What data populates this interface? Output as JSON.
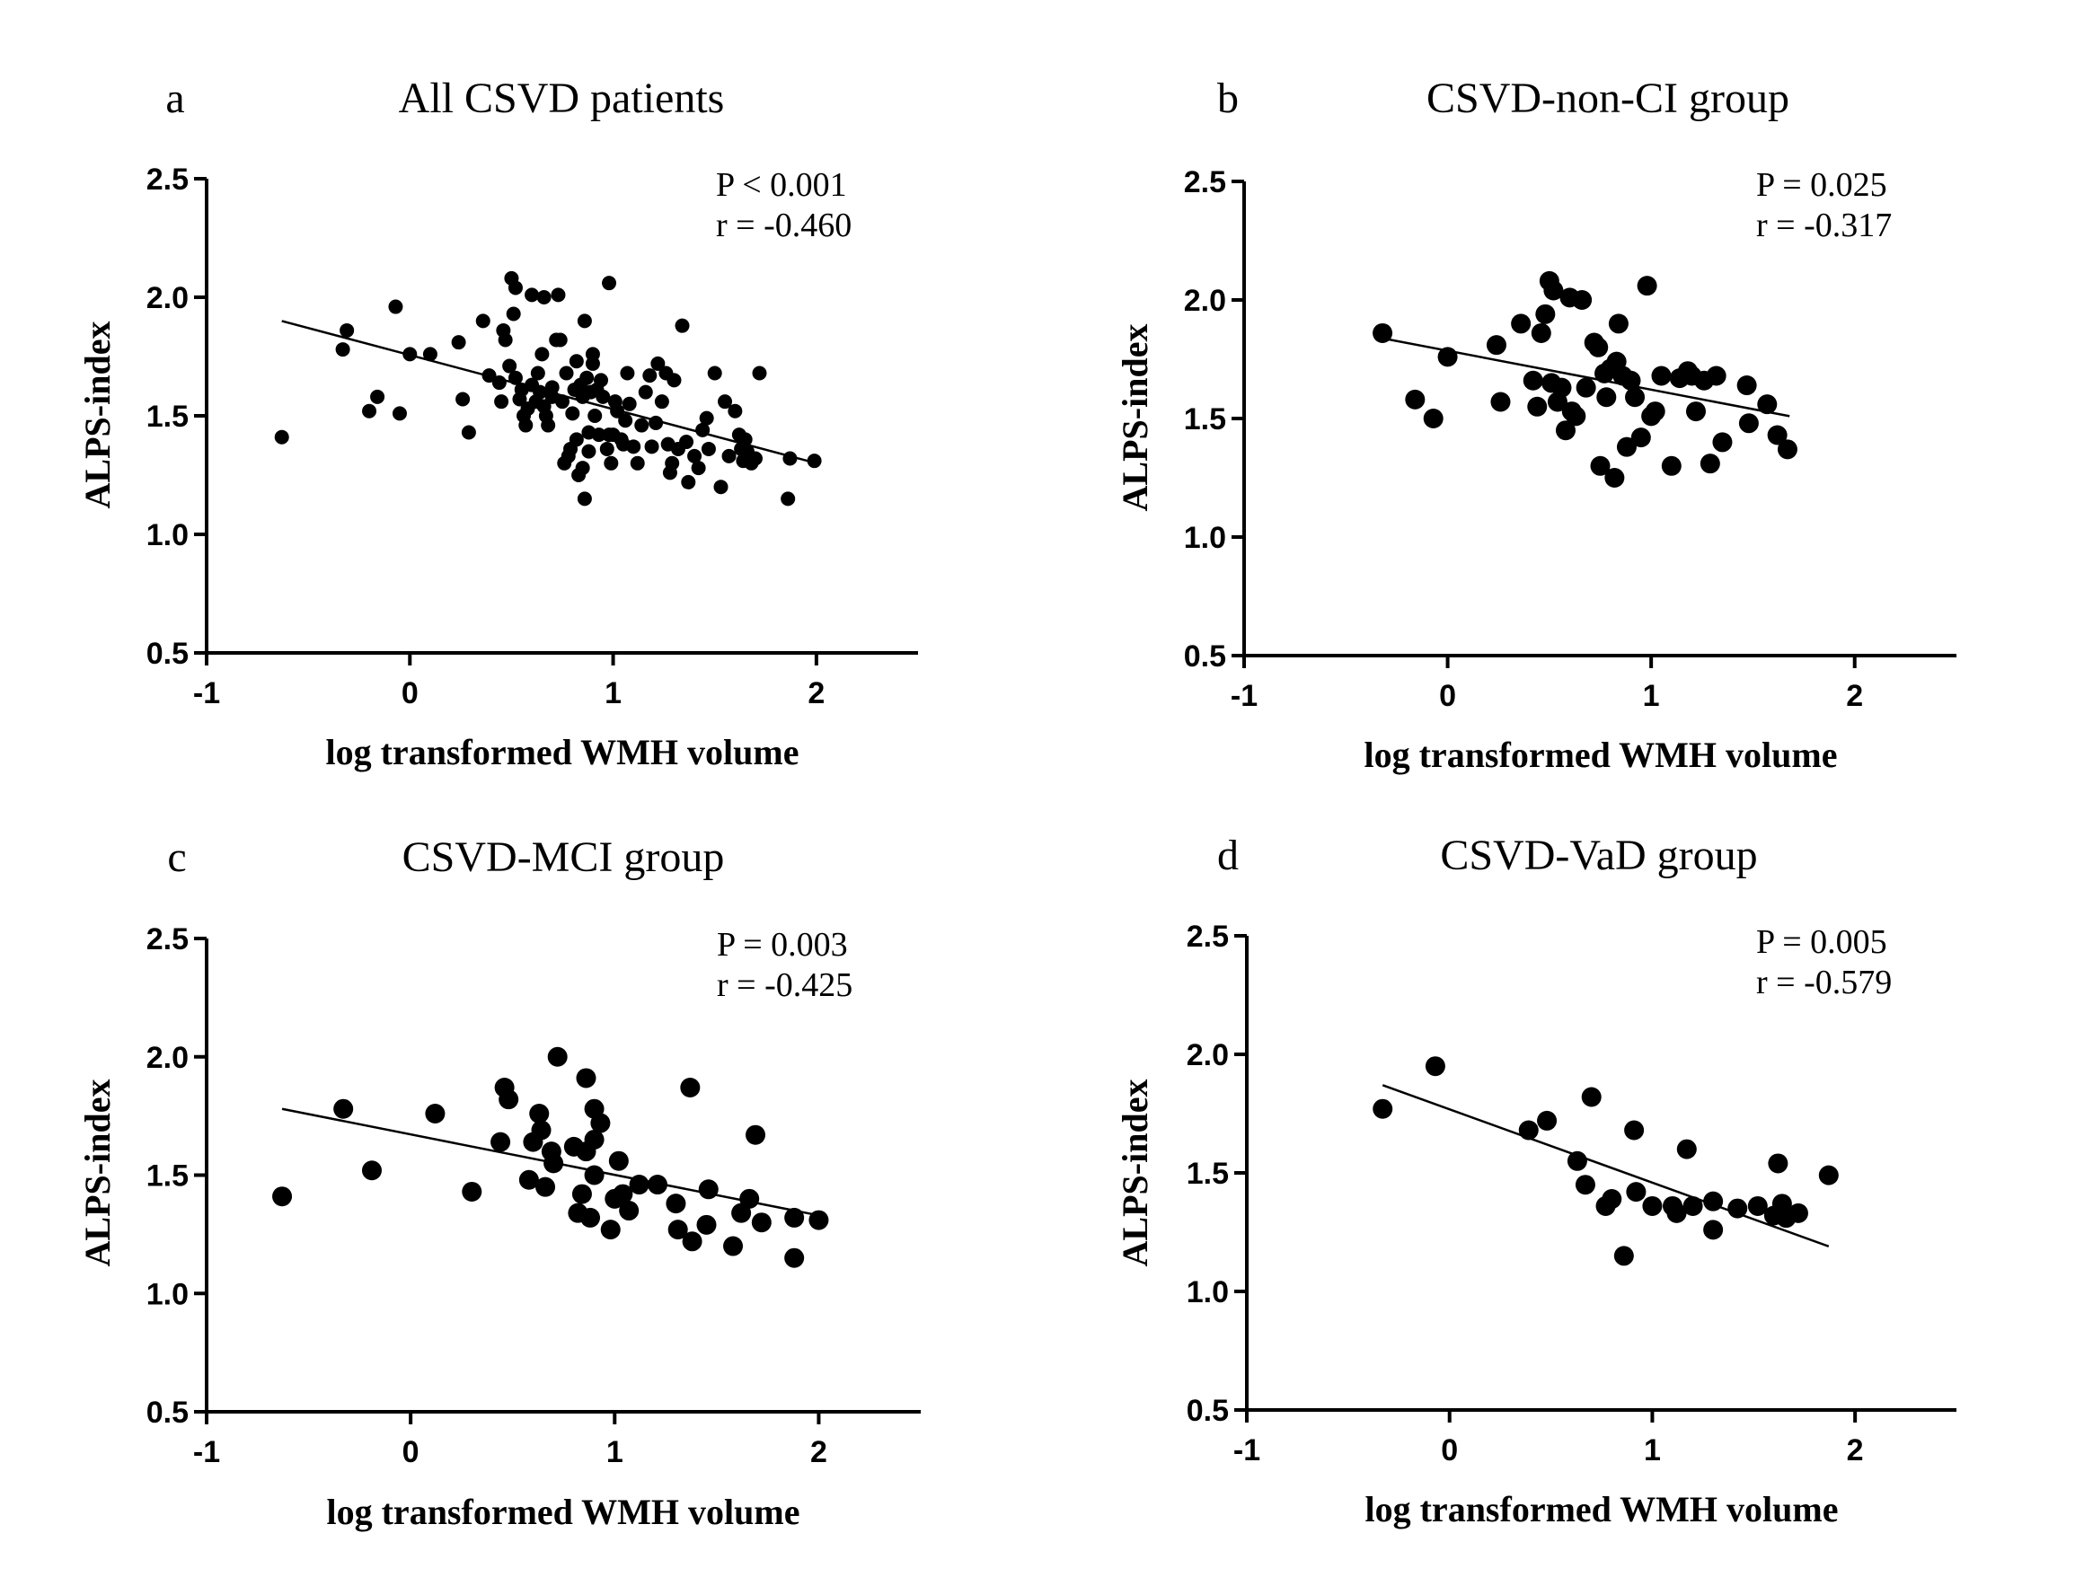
{
  "chart_data": [
    {
      "type": "scatter",
      "panel": "a",
      "title": "All CSVD patients",
      "xlabel": "log transformed WMH volume",
      "ylabel": "ALPS-index",
      "xlim": [
        -1,
        2.5
      ],
      "ylim": [
        0.5,
        2.5
      ],
      "xticks": [
        "-1",
        "0",
        "1",
        "2"
      ],
      "yticks": [
        "0.5",
        "1.0",
        "1.5",
        "2.0",
        "2.5"
      ],
      "stat_p": "P < 0.001",
      "stat_r": "r = -0.460",
      "fit": {
        "x": [
          -0.63,
          2.0
        ],
        "y": [
          1.9,
          1.3
        ]
      },
      "points": [
        [
          -0.63,
          1.41
        ],
        [
          -0.33,
          1.78
        ],
        [
          -0.31,
          1.86
        ],
        [
          -0.2,
          1.52
        ],
        [
          -0.16,
          1.58
        ],
        [
          -0.07,
          1.96
        ],
        [
          -0.05,
          1.51
        ],
        [
          0,
          1.76
        ],
        [
          0.1,
          1.76
        ],
        [
          0.24,
          1.81
        ],
        [
          0.26,
          1.57
        ],
        [
          0.29,
          1.43
        ],
        [
          0.36,
          1.9
        ],
        [
          0.39,
          1.67
        ],
        [
          0.44,
          1.64
        ],
        [
          0.45,
          1.56
        ],
        [
          0.46,
          1.86
        ],
        [
          0.47,
          1.82
        ],
        [
          0.49,
          1.71
        ],
        [
          0.5,
          2.08
        ],
        [
          0.51,
          1.93
        ],
        [
          0.52,
          2.04
        ],
        [
          0.52,
          1.66
        ],
        [
          0.54,
          1.57
        ],
        [
          0.55,
          1.61
        ],
        [
          0.56,
          1.5
        ],
        [
          0.57,
          1.46
        ],
        [
          0.58,
          1.53
        ],
        [
          0.6,
          2.01
        ],
        [
          0.6,
          1.63
        ],
        [
          0.62,
          1.56
        ],
        [
          0.63,
          1.68
        ],
        [
          0.64,
          1.6
        ],
        [
          0.65,
          1.76
        ],
        [
          0.66,
          2.0
        ],
        [
          0.66,
          1.54
        ],
        [
          0.67,
          1.5
        ],
        [
          0.68,
          1.46
        ],
        [
          0.7,
          1.62
        ],
        [
          0.7,
          1.58
        ],
        [
          0.72,
          1.82
        ],
        [
          0.73,
          2.01
        ],
        [
          0.74,
          1.82
        ],
        [
          0.75,
          1.56
        ],
        [
          0.76,
          1.3
        ],
        [
          0.77,
          1.68
        ],
        [
          0.78,
          1.33
        ],
        [
          0.79,
          1.36
        ],
        [
          0.8,
          1.51
        ],
        [
          0.81,
          1.61
        ],
        [
          0.82,
          1.73
        ],
        [
          0.82,
          1.4
        ],
        [
          0.83,
          1.25
        ],
        [
          0.84,
          1.63
        ],
        [
          0.85,
          1.28
        ],
        [
          0.85,
          1.58
        ],
        [
          0.86,
          1.9
        ],
        [
          0.86,
          1.15
        ],
        [
          0.87,
          1.66
        ],
        [
          0.88,
          1.43
        ],
        [
          0.88,
          1.35
        ],
        [
          0.89,
          1.6
        ],
        [
          0.9,
          1.72
        ],
        [
          0.9,
          1.76
        ],
        [
          0.91,
          1.5
        ],
        [
          0.92,
          1.61
        ],
        [
          0.93,
          1.42
        ],
        [
          0.94,
          1.65
        ],
        [
          0.95,
          1.58
        ],
        [
          0.97,
          1.36
        ],
        [
          0.98,
          2.06
        ],
        [
          0.98,
          1.42
        ],
        [
          0.99,
          1.3
        ],
        [
          1.0,
          1.42
        ],
        [
          1.01,
          1.56
        ],
        [
          1.02,
          1.52
        ],
        [
          1.04,
          1.4
        ],
        [
          1.05,
          1.38
        ],
        [
          1.06,
          1.48
        ],
        [
          1.07,
          1.68
        ],
        [
          1.08,
          1.55
        ],
        [
          1.1,
          1.37
        ],
        [
          1.12,
          1.3
        ],
        [
          1.14,
          1.46
        ],
        [
          1.16,
          1.6
        ],
        [
          1.18,
          1.67
        ],
        [
          1.19,
          1.37
        ],
        [
          1.21,
          1.47
        ],
        [
          1.22,
          1.72
        ],
        [
          1.24,
          1.56
        ],
        [
          1.26,
          1.68
        ],
        [
          1.27,
          1.38
        ],
        [
          1.28,
          1.26
        ],
        [
          1.29,
          1.3
        ],
        [
          1.3,
          1.65
        ],
        [
          1.32,
          1.36
        ],
        [
          1.34,
          1.88
        ],
        [
          1.36,
          1.39
        ],
        [
          1.37,
          1.22
        ],
        [
          1.4,
          1.33
        ],
        [
          1.42,
          1.28
        ],
        [
          1.44,
          1.44
        ],
        [
          1.46,
          1.49
        ],
        [
          1.47,
          1.36
        ],
        [
          1.5,
          1.68
        ],
        [
          1.53,
          1.2
        ],
        [
          1.55,
          1.56
        ],
        [
          1.57,
          1.33
        ],
        [
          1.6,
          1.52
        ],
        [
          1.62,
          1.42
        ],
        [
          1.63,
          1.36
        ],
        [
          1.64,
          1.31
        ],
        [
          1.65,
          1.4
        ],
        [
          1.66,
          1.35
        ],
        [
          1.68,
          1.3
        ],
        [
          1.7,
          1.32
        ],
        [
          1.72,
          1.68
        ],
        [
          1.86,
          1.15
        ],
        [
          1.87,
          1.32
        ],
        [
          1.99,
          1.31
        ]
      ]
    },
    {
      "type": "scatter",
      "panel": "b",
      "title": "CSVD-non-CI group",
      "xlabel": "log transformed WMH volume",
      "ylabel": "ALPS-index",
      "xlim": [
        -1,
        2.5
      ],
      "ylim": [
        0.5,
        2.5
      ],
      "xticks": [
        "-1",
        "0",
        "1",
        "2"
      ],
      "yticks": [
        "0.5",
        "1.0",
        "1.5",
        "2.0",
        "2.5"
      ],
      "stat_p": "P = 0.025",
      "stat_r": "r = -0.317",
      "fit": {
        "x": [
          -0.33,
          1.68
        ],
        "y": [
          1.84,
          1.51
        ]
      },
      "points": [
        [
          -0.32,
          1.86
        ],
        [
          -0.16,
          1.58
        ],
        [
          -0.07,
          1.5
        ],
        [
          0,
          1.76
        ],
        [
          0.24,
          1.81
        ],
        [
          0.26,
          1.57
        ],
        [
          0.36,
          1.9
        ],
        [
          0.42,
          1.66
        ],
        [
          0.44,
          1.55
        ],
        [
          0.46,
          1.86
        ],
        [
          0.48,
          1.94
        ],
        [
          0.5,
          2.08
        ],
        [
          0.51,
          1.65
        ],
        [
          0.52,
          2.04
        ],
        [
          0.54,
          1.57
        ],
        [
          0.56,
          1.63
        ],
        [
          0.58,
          1.45
        ],
        [
          0.6,
          2.01
        ],
        [
          0.61,
          1.53
        ],
        [
          0.63,
          1.51
        ],
        [
          0.66,
          2.0
        ],
        [
          0.68,
          1.63
        ],
        [
          0.72,
          1.82
        ],
        [
          0.74,
          1.8
        ],
        [
          0.75,
          1.3
        ],
        [
          0.77,
          1.69
        ],
        [
          0.78,
          1.59
        ],
        [
          0.8,
          1.71
        ],
        [
          0.82,
          1.25
        ],
        [
          0.83,
          1.74
        ],
        [
          0.84,
          1.9
        ],
        [
          0.86,
          1.68
        ],
        [
          0.88,
          1.38
        ],
        [
          0.9,
          1.66
        ],
        [
          0.92,
          1.59
        ],
        [
          0.95,
          1.42
        ],
        [
          0.98,
          2.06
        ],
        [
          1.0,
          1.51
        ],
        [
          1.02,
          1.53
        ],
        [
          1.05,
          1.68
        ],
        [
          1.1,
          1.3
        ],
        [
          1.14,
          1.67
        ],
        [
          1.18,
          1.7
        ],
        [
          1.2,
          1.68
        ],
        [
          1.22,
          1.53
        ],
        [
          1.26,
          1.66
        ],
        [
          1.29,
          1.31
        ],
        [
          1.32,
          1.68
        ],
        [
          1.35,
          1.4
        ],
        [
          1.47,
          1.64
        ],
        [
          1.48,
          1.48
        ],
        [
          1.57,
          1.56
        ],
        [
          1.62,
          1.43
        ],
        [
          1.67,
          1.37
        ]
      ]
    },
    {
      "type": "scatter",
      "panel": "c",
      "title": "CSVD-MCI group",
      "xlabel": "log transformed WMH volume",
      "ylabel": "ALPS-index",
      "xlim": [
        -1,
        2.5
      ],
      "ylim": [
        0.5,
        2.5
      ],
      "xticks": [
        "-1",
        "0",
        "1",
        "2"
      ],
      "yticks": [
        "0.5",
        "1.0",
        "1.5",
        "2.0",
        "2.5"
      ],
      "stat_p": "P = 0.003",
      "stat_r": "r = -0.425",
      "fit": {
        "x": [
          -0.63,
          2.0
        ],
        "y": [
          1.78,
          1.33
        ]
      },
      "points": [
        [
          -0.63,
          1.41
        ],
        [
          -0.33,
          1.78
        ],
        [
          -0.19,
          1.52
        ],
        [
          0.12,
          1.76
        ],
        [
          0.3,
          1.43
        ],
        [
          0.44,
          1.64
        ],
        [
          0.46,
          1.87
        ],
        [
          0.48,
          1.82
        ],
        [
          0.58,
          1.48
        ],
        [
          0.6,
          1.64
        ],
        [
          0.63,
          1.76
        ],
        [
          0.64,
          1.69
        ],
        [
          0.66,
          1.45
        ],
        [
          0.69,
          1.6
        ],
        [
          0.7,
          1.55
        ],
        [
          0.72,
          2.0
        ],
        [
          0.8,
          1.62
        ],
        [
          0.82,
          1.34
        ],
        [
          0.84,
          1.42
        ],
        [
          0.86,
          1.91
        ],
        [
          0.86,
          1.6
        ],
        [
          0.88,
          1.32
        ],
        [
          0.9,
          1.65
        ],
        [
          0.9,
          1.5
        ],
        [
          0.9,
          1.78
        ],
        [
          0.93,
          1.72
        ],
        [
          0.98,
          1.27
        ],
        [
          1.0,
          1.4
        ],
        [
          1.02,
          1.56
        ],
        [
          1.04,
          1.42
        ],
        [
          1.07,
          1.35
        ],
        [
          1.12,
          1.46
        ],
        [
          1.21,
          1.46
        ],
        [
          1.3,
          1.38
        ],
        [
          1.31,
          1.27
        ],
        [
          1.37,
          1.87
        ],
        [
          1.38,
          1.22
        ],
        [
          1.45,
          1.29
        ],
        [
          1.46,
          1.44
        ],
        [
          1.58,
          1.2
        ],
        [
          1.62,
          1.34
        ],
        [
          1.66,
          1.4
        ],
        [
          1.69,
          1.67
        ],
        [
          1.72,
          1.3
        ],
        [
          1.88,
          1.15
        ],
        [
          1.88,
          1.32
        ],
        [
          2.0,
          1.31
        ]
      ]
    },
    {
      "type": "scatter",
      "panel": "d",
      "title": "CSVD-VaD group",
      "xlabel": "log transformed WMH volume",
      "ylabel": "ALPS-index",
      "xlim": [
        -1,
        2.5
      ],
      "ylim": [
        0.5,
        2.5
      ],
      "xticks": [
        "-1",
        "0",
        "1",
        "2"
      ],
      "yticks": [
        "0.5",
        "1.0",
        "1.5",
        "2.0",
        "2.5"
      ],
      "stat_p": "P = 0.005",
      "stat_r": "r = -0.579",
      "fit": {
        "x": [
          -0.33,
          1.87
        ],
        "y": [
          1.87,
          1.19
        ]
      },
      "points": [
        [
          -0.33,
          1.77
        ],
        [
          -0.07,
          1.95
        ],
        [
          0.39,
          1.68
        ],
        [
          0.48,
          1.72
        ],
        [
          0.63,
          1.55
        ],
        [
          0.67,
          1.45
        ],
        [
          0.7,
          1.82
        ],
        [
          0.77,
          1.36
        ],
        [
          0.8,
          1.39
        ],
        [
          0.86,
          1.15
        ],
        [
          0.91,
          1.68
        ],
        [
          0.92,
          1.42
        ],
        [
          1.0,
          1.36
        ],
        [
          1.1,
          1.36
        ],
        [
          1.12,
          1.33
        ],
        [
          1.17,
          1.6
        ],
        [
          1.2,
          1.36
        ],
        [
          1.3,
          1.26
        ],
        [
          1.3,
          1.38
        ],
        [
          1.42,
          1.35
        ],
        [
          1.52,
          1.36
        ],
        [
          1.6,
          1.32
        ],
        [
          1.62,
          1.54
        ],
        [
          1.64,
          1.37
        ],
        [
          1.66,
          1.31
        ],
        [
          1.72,
          1.33
        ],
        [
          1.87,
          1.49
        ]
      ]
    }
  ]
}
